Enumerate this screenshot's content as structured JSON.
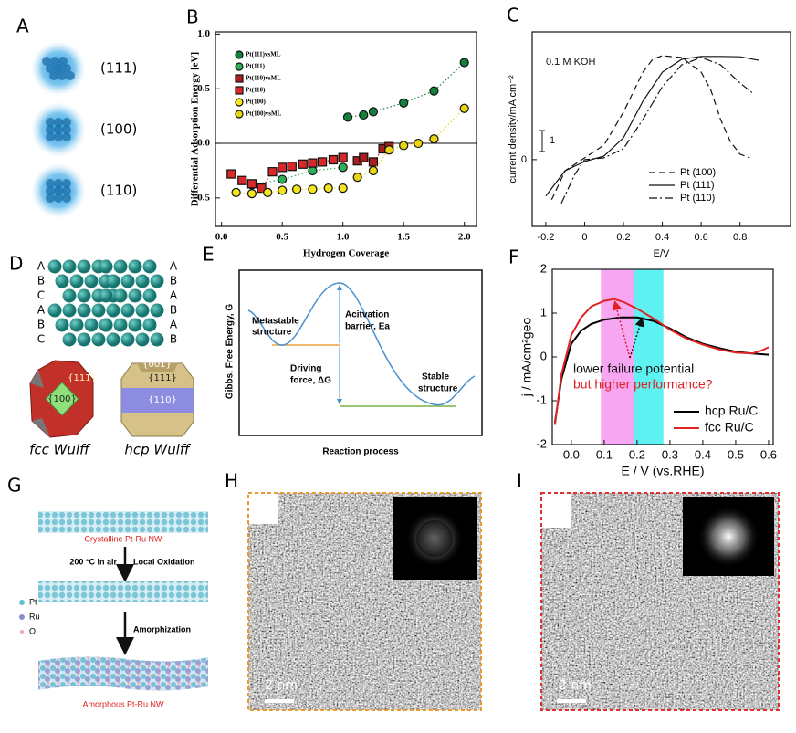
{
  "panels": {
    "A": {
      "label": "A",
      "facets": [
        "(111)",
        "(100)",
        "(110)"
      ]
    },
    "D": {
      "label": "D",
      "fcc_stack": [
        "A",
        "B",
        "C",
        "A",
        "B",
        "C"
      ],
      "hcp_stack": [
        "A",
        "B",
        "A",
        "B",
        "A",
        "B"
      ],
      "fcc_facets": [
        "{111}",
        "{100}"
      ],
      "hcp_facets": [
        "{001}",
        "{111}",
        "{110}"
      ],
      "captions": [
        "fcc Wulff",
        "hcp Wulff"
      ]
    },
    "E": {
      "label": "E",
      "ylabel": "Gibbs,  Free Energy, G",
      "xlabel": "Reaction process",
      "metastable": [
        "Metastable",
        "structure"
      ],
      "barrier": [
        "Acitvation",
        "barrier, Ea"
      ],
      "driving": [
        "Driving",
        "force, ΔG"
      ],
      "stable": [
        "Stable",
        "structure"
      ]
    },
    "G": {
      "label": "G",
      "top": "Crystalline Pt-Ru NW",
      "step1_left": "200 °C  in air",
      "step1_right": "Local Oxidation",
      "step2": "Amorphization",
      "bottom": "Amorphous Pt-Ru NW",
      "legend": [
        "Pt",
        "Ru",
        "O"
      ]
    },
    "H": {
      "label": "H",
      "scale": "2 nm"
    },
    "I": {
      "label": "I",
      "scale": "2 nm"
    }
  },
  "chart_data": [
    {
      "label": "B",
      "type": "scatter",
      "xlabel": "Hydrogen Coverage",
      "ylabel": "Differential Adsorption Energy [eV]",
      "xlim": [
        -0.05,
        2.1
      ],
      "ylim": [
        -0.76,
        1.02
      ],
      "xticks": [
        {
          "value": 0,
          "label": "0.0"
        },
        0.5,
        {
          "value": 1,
          "label": "1.0"
        },
        1.5,
        {
          "value": 2,
          "label": "2.0"
        }
      ],
      "yticks": [
        {
          "value": 1,
          "label": "1.0"
        },
        0.5,
        {
          "value": 0,
          "label": "0.0"
        },
        -0.5
      ],
      "zero_line": true,
      "legend": "upper left",
      "series": [
        {
          "name": "Pt(111)vsML",
          "color": "#13803b",
          "marker": "circle",
          "linestyle": "dotted",
          "x": [
            1.04,
            1.17,
            1.25,
            1.5,
            1.75,
            2.0
          ],
          "values": [
            0.24,
            0.26,
            0.29,
            0.37,
            0.48,
            0.74
          ]
        },
        {
          "name": "Pt(111)",
          "color": "#2fae5a",
          "marker": "circle",
          "linestyle": "dotted",
          "x": [
            0.25,
            0.5,
            0.75,
            1.0
          ],
          "values": [
            -0.38,
            -0.33,
            -0.25,
            -0.22
          ]
        },
        {
          "name": "Pt(110)vsML",
          "color": "#a81d1d",
          "marker": "square",
          "linestyle": "dotted",
          "x": [
            1.12,
            1.17,
            1.25,
            1.33,
            1.38
          ],
          "values": [
            -0.16,
            -0.13,
            -0.17,
            -0.05,
            -0.03
          ]
        },
        {
          "name": "Pt(110)",
          "color": "#d62a2a",
          "marker": "square",
          "linestyle": "dotted",
          "x": [
            0.08,
            0.17,
            0.25,
            0.33,
            0.42,
            0.5,
            0.58,
            0.67,
            0.75,
            0.83,
            0.92,
            1.0
          ],
          "values": [
            -0.28,
            -0.34,
            -0.37,
            -0.41,
            -0.26,
            -0.22,
            -0.21,
            -0.19,
            -0.18,
            -0.17,
            -0.15,
            -0.13
          ]
        },
        {
          "name": "Pt(100)",
          "color": "#f5e51e",
          "marker": "circle",
          "linestyle": "dotted",
          "x": [
            0.12,
            0.25,
            0.38,
            0.5,
            0.62,
            0.75,
            0.88,
            1.0
          ],
          "values": [
            -0.45,
            -0.46,
            -0.45,
            -0.43,
            -0.42,
            -0.42,
            -0.41,
            -0.41
          ]
        },
        {
          "name": "Pt(100)vsML",
          "color": "#e8d410",
          "marker": "circle",
          "linestyle": "dotted",
          "x": [
            1.12,
            1.25,
            1.38,
            1.5,
            1.62,
            1.75,
            2.0
          ],
          "values": [
            -0.31,
            -0.25,
            -0.06,
            -0.02,
            0.0,
            0.04,
            0.32
          ]
        }
      ]
    },
    {
      "label": "C",
      "type": "line",
      "xlabel": "E/V",
      "ylabel": "current density/mA cm⁻²",
      "xlim": [
        -0.27,
        1.06
      ],
      "ylim": [
        -1.83,
        3.5
      ],
      "xticks": [
        -0.2,
        0,
        0.2,
        0.4,
        0.6,
        0.8
      ],
      "yticks": [
        0
      ],
      "annotations": [
        {
          "text": "0.1 M KOH"
        },
        {
          "text": "1"
        }
      ],
      "legend": "lower right",
      "series": [
        {
          "name": "Pt (100)",
          "color": "#111111",
          "linestyle": "dashed",
          "x": [
            -0.17,
            -0.1,
            0,
            0.1,
            0.2,
            0.3,
            0.35,
            0.4,
            0.5,
            0.6,
            0.65,
            0.7,
            0.75,
            0.8,
            0.85
          ],
          "values": [
            -1.1,
            -0.3,
            0.05,
            0.4,
            1.3,
            2.4,
            2.75,
            2.85,
            2.8,
            2.4,
            1.9,
            1.1,
            0.5,
            0.15,
            0.05
          ]
        },
        {
          "name": "Pt (111)",
          "color": "#111111",
          "linestyle": "solid",
          "x": [
            -0.2,
            -0.1,
            0,
            0.1,
            0.2,
            0.3,
            0.4,
            0.5,
            0.6,
            0.7,
            0.8,
            0.9
          ],
          "values": [
            -1.0,
            -0.3,
            -0.05,
            0.1,
            0.6,
            1.6,
            2.4,
            2.75,
            2.83,
            2.83,
            2.82,
            2.72
          ]
        },
        {
          "name": "Pt (110)",
          "color": "#111111",
          "linestyle": "dashdot",
          "x": [
            -0.12,
            -0.05,
            0,
            0.1,
            0.2,
            0.3,
            0.4,
            0.5,
            0.6,
            0.7,
            0.8,
            0.87
          ],
          "values": [
            -1.2,
            -0.4,
            0.0,
            0.05,
            0.3,
            1.1,
            2.0,
            2.6,
            2.8,
            2.6,
            2.1,
            1.8
          ]
        }
      ]
    },
    {
      "label": "F",
      "type": "line",
      "xlabel": "E / V (vs.RHE)",
      "ylabel": "j / mA/cm²geo",
      "xlim": [
        -0.058,
        0.614
      ],
      "ylim": [
        -2,
        2
      ],
      "xticks": [
        {
          "value": 0,
          "label": "0.0"
        },
        0.1,
        0.2,
        0.3,
        0.4,
        0.5,
        0.6
      ],
      "yticks": [
        -2,
        -1,
        0,
        1,
        2
      ],
      "spans": [
        {
          "from": 0.09,
          "to": 0.19,
          "color": "#f7a6f2"
        },
        {
          "from": 0.19,
          "to": 0.28,
          "color": "#5ef2f2"
        }
      ],
      "annotations": [
        {
          "text": "lower failure potential",
          "color": "#111111"
        },
        {
          "text": "but higher performance?",
          "color": "#e02020"
        }
      ],
      "legend": "lower right",
      "series": [
        {
          "name": "hcp Ru/C",
          "color": "#000000",
          "linestyle": "solid",
          "x": [
            -0.05,
            -0.03,
            0,
            0.03,
            0.06,
            0.1,
            0.15,
            0.2,
            0.25,
            0.3,
            0.35,
            0.4,
            0.45,
            0.5,
            0.55,
            0.6
          ],
          "values": [
            -1.5,
            -0.5,
            0.3,
            0.6,
            0.75,
            0.85,
            0.9,
            0.9,
            0.82,
            0.65,
            0.45,
            0.3,
            0.2,
            0.12,
            0.08,
            0.05
          ]
        },
        {
          "name": "fcc Ru/C",
          "color": "#e02424",
          "linestyle": "solid",
          "x": [
            -0.05,
            -0.03,
            0,
            0.03,
            0.06,
            0.1,
            0.13,
            0.16,
            0.2,
            0.25,
            0.3,
            0.35,
            0.4,
            0.45,
            0.5,
            0.55,
            0.58,
            0.6
          ],
          "values": [
            -1.55,
            -0.4,
            0.5,
            0.9,
            1.15,
            1.28,
            1.32,
            1.25,
            1.1,
            0.88,
            0.62,
            0.42,
            0.28,
            0.17,
            0.1,
            0.08,
            0.15,
            0.22
          ]
        }
      ]
    }
  ]
}
